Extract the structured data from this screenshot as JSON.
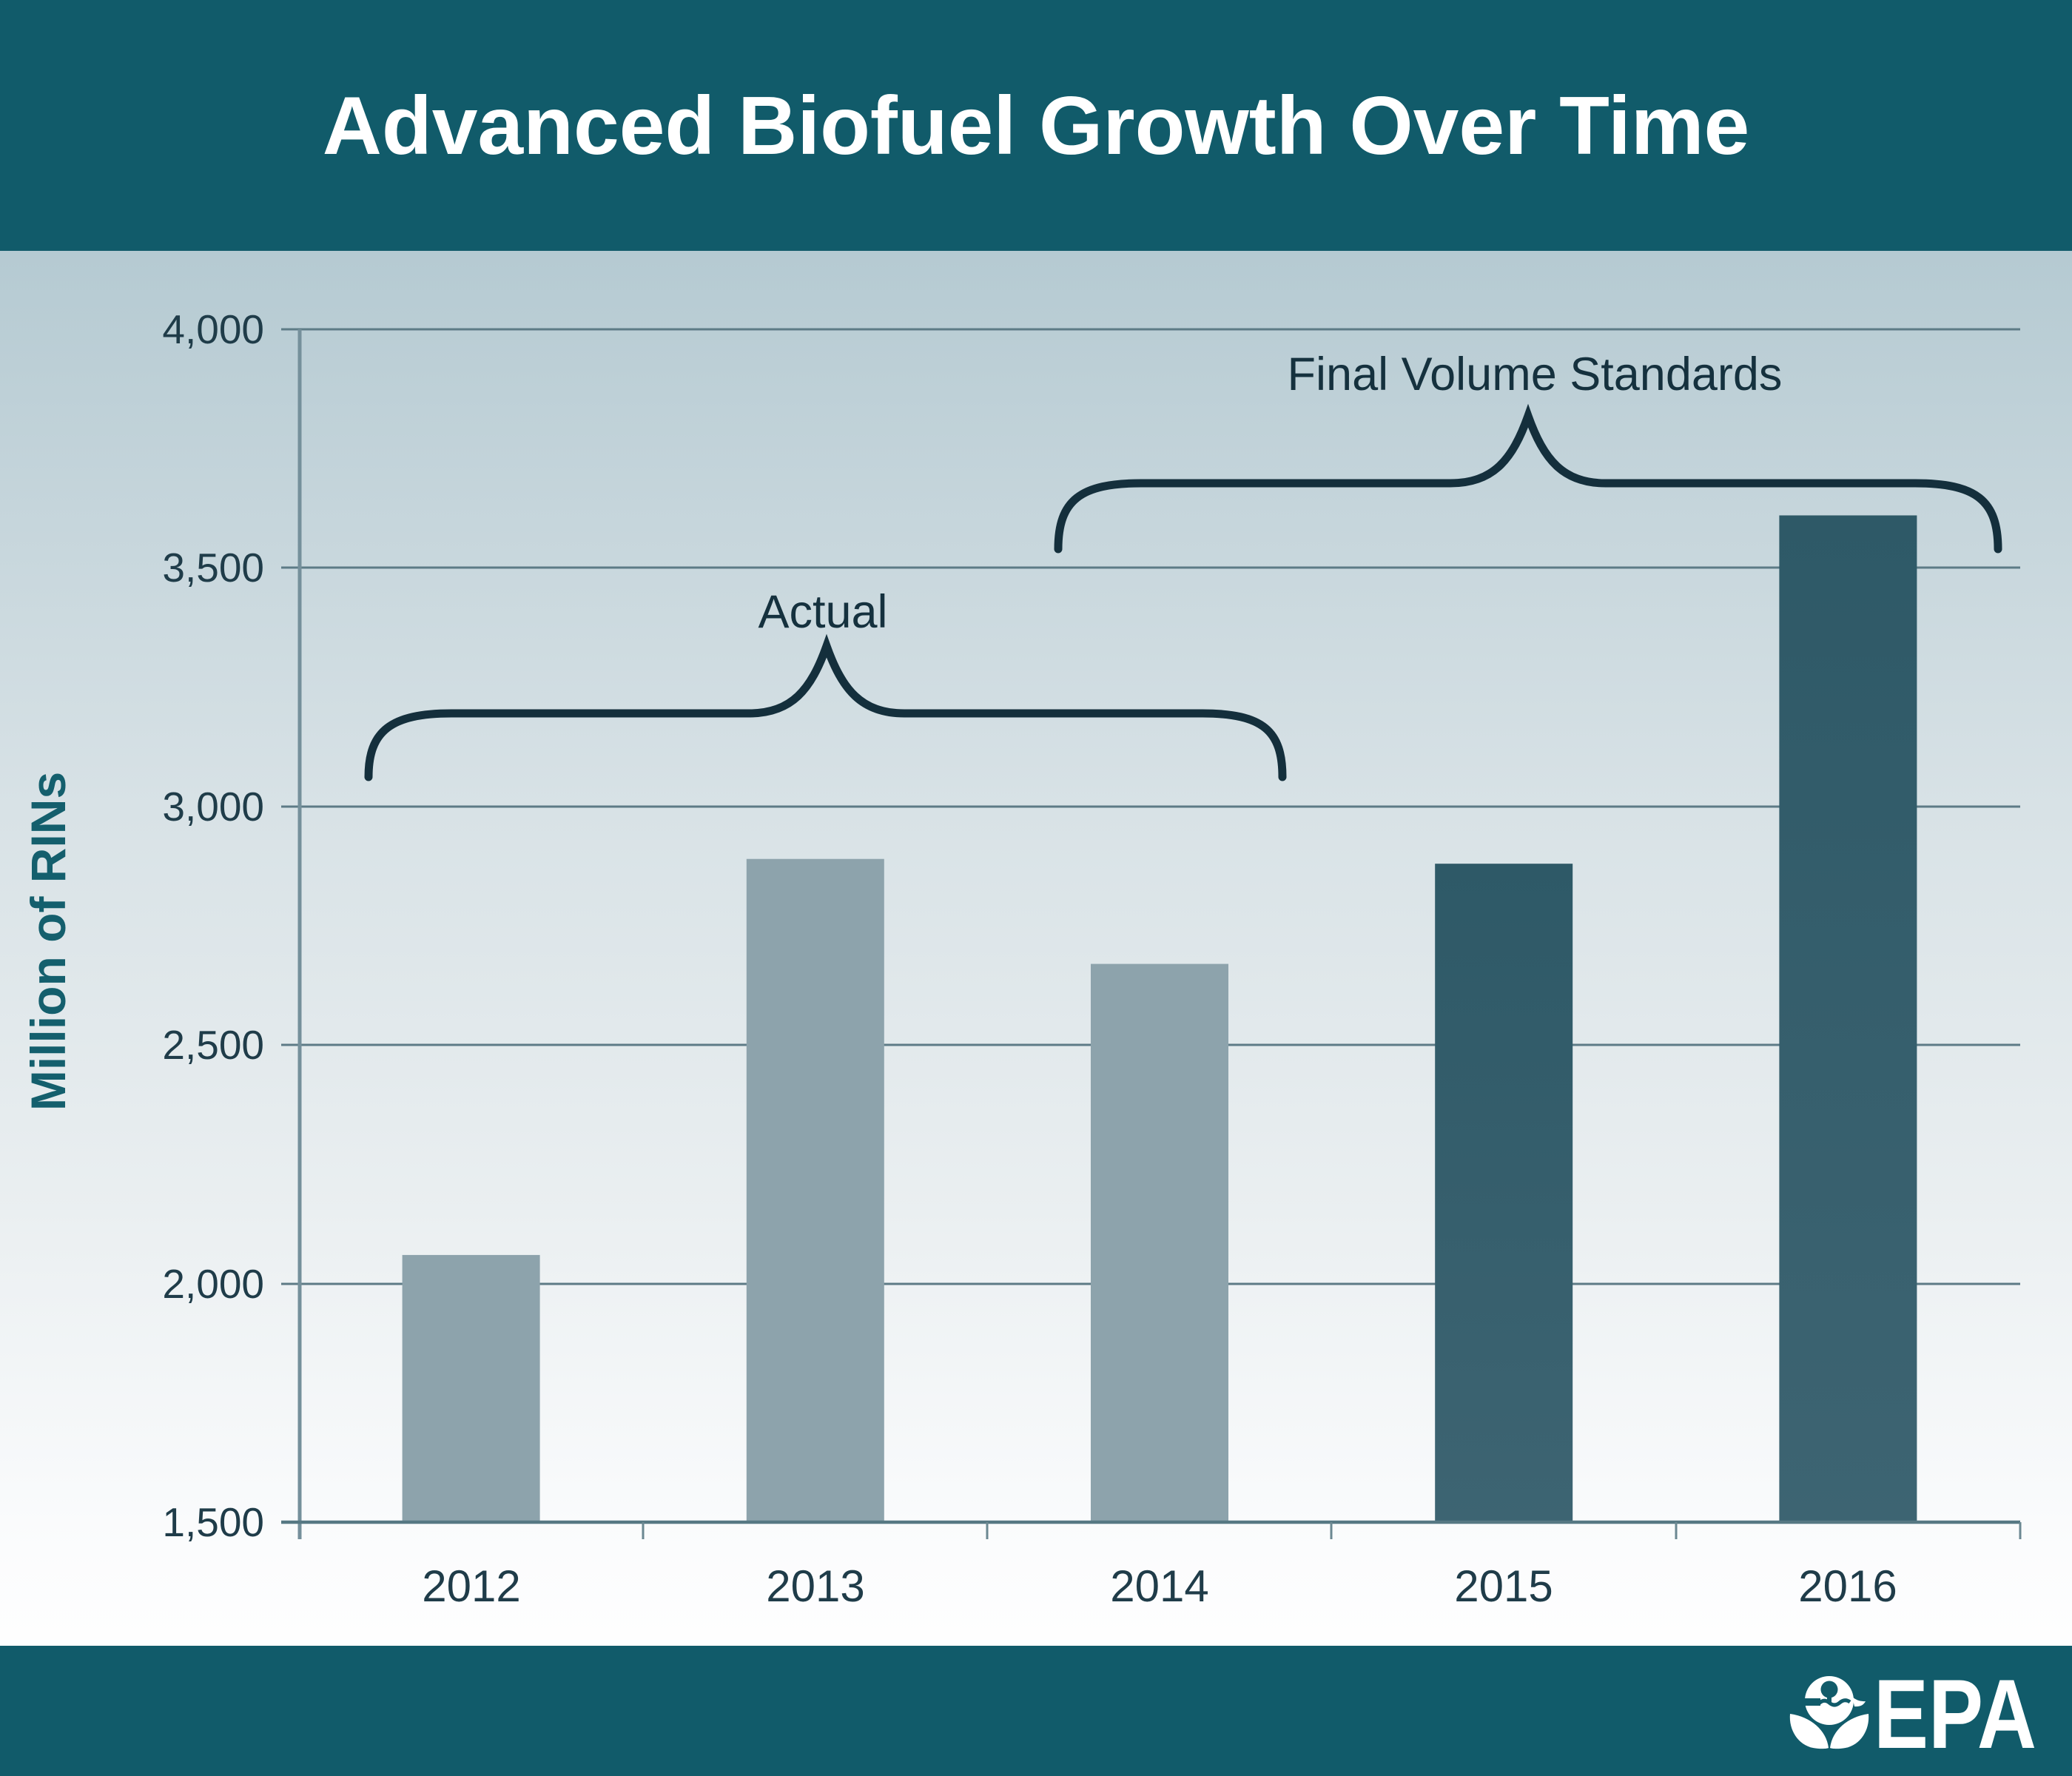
{
  "header": {
    "title": "Advanced Biofuel Growth Over Time"
  },
  "chart_data": {
    "type": "bar",
    "title": "Advanced Biofuel Growth Over Time",
    "categories": [
      "2012",
      "2013",
      "2014",
      "2015",
      "2016"
    ],
    "values": [
      2060,
      2890,
      2670,
      2880,
      3610
    ],
    "bar_palette": [
      "actual",
      "actual",
      "actual",
      "standard",
      "standard"
    ],
    "palette": {
      "actual": "#8da3ac",
      "standard": "#2f5a68"
    },
    "xlabel": "",
    "ylabel": "Million of RINs",
    "ylim": [
      1500,
      4000
    ],
    "ytick_step": 500,
    "yticks": [
      "4,000",
      "3,500",
      "3,000",
      "2,500",
      "2,000",
      "1,500"
    ],
    "grid": true,
    "legend": false,
    "annotations": [
      {
        "label": "Actual",
        "span_categories": [
          "2012",
          "2013",
          "2014"
        ]
      },
      {
        "label": "Final Volume Standards",
        "span_categories": [
          "2014",
          "2015",
          "2016"
        ]
      }
    ]
  },
  "footer": {
    "logo_text": "EPA",
    "logo_icon": "epa-flower-icon"
  },
  "colors": {
    "header_band": "#115b6a",
    "footer_band": "#115b6a",
    "bar_actual": "#8da3ac",
    "bar_standard": "#2f5a68",
    "brace": "#142f3c",
    "background_top": "#b5cad2",
    "background_bottom": "#fefefe"
  }
}
